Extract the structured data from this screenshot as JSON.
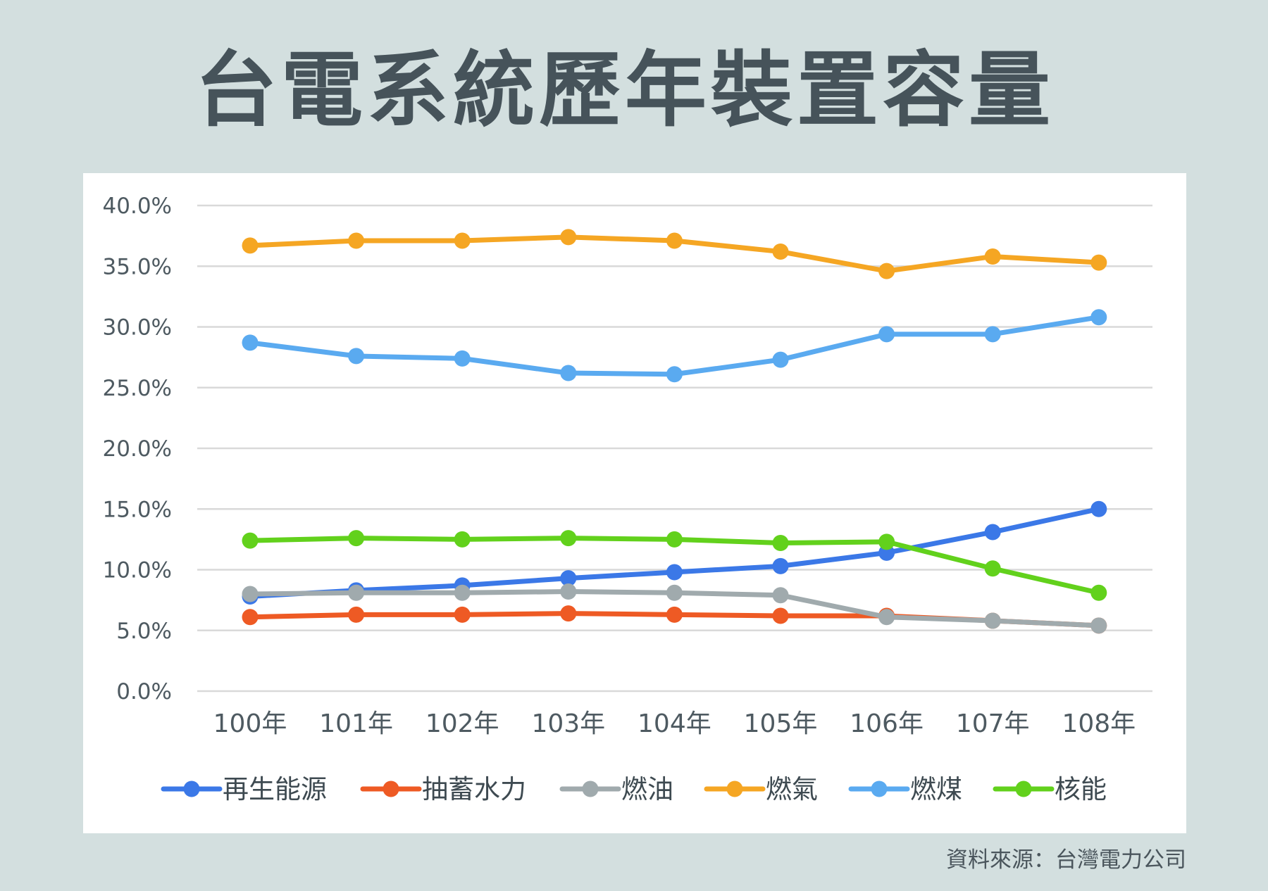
{
  "title": "台電系統歷年裝置容量",
  "source": "資料來源：台灣電力公司",
  "chart_data": {
    "type": "line",
    "title": "台電系統歷年裝置容量",
    "categories": [
      "100年",
      "101年",
      "102年",
      "103年",
      "104年",
      "105年",
      "106年",
      "107年",
      "108年"
    ],
    "ylim": [
      0,
      40
    ],
    "y_ticks": [
      "0.0%",
      "5.0%",
      "10.0%",
      "15.0%",
      "20.0%",
      "25.0%",
      "30.0%",
      "35.0%",
      "40.0%"
    ],
    "grid": true,
    "legend_position": "bottom",
    "series": [
      {
        "name": "再生能源",
        "color": "#3b78e7",
        "values": [
          7.8,
          8.3,
          8.7,
          9.3,
          9.8,
          10.3,
          11.4,
          13.1,
          15.0
        ]
      },
      {
        "name": "抽蓄水力",
        "color": "#ee5a24",
        "values": [
          6.1,
          6.3,
          6.3,
          6.4,
          6.3,
          6.2,
          6.2,
          5.8,
          5.4
        ]
      },
      {
        "name": "燃油",
        "color": "#a0aaad",
        "values": [
          8.0,
          8.1,
          8.1,
          8.2,
          8.1,
          7.9,
          6.1,
          5.8,
          5.4
        ]
      },
      {
        "name": "燃氣",
        "color": "#f5a623",
        "values": [
          36.7,
          37.1,
          37.1,
          37.4,
          37.1,
          36.2,
          34.6,
          35.8,
          35.3
        ]
      },
      {
        "name": "燃煤",
        "color": "#5aaaf0",
        "values": [
          28.7,
          27.6,
          27.4,
          26.2,
          26.1,
          27.3,
          29.4,
          29.4,
          30.8
        ]
      },
      {
        "name": "核能",
        "color": "#62d11c",
        "values": [
          12.4,
          12.6,
          12.5,
          12.6,
          12.5,
          12.2,
          12.3,
          10.1,
          8.1
        ]
      }
    ]
  }
}
